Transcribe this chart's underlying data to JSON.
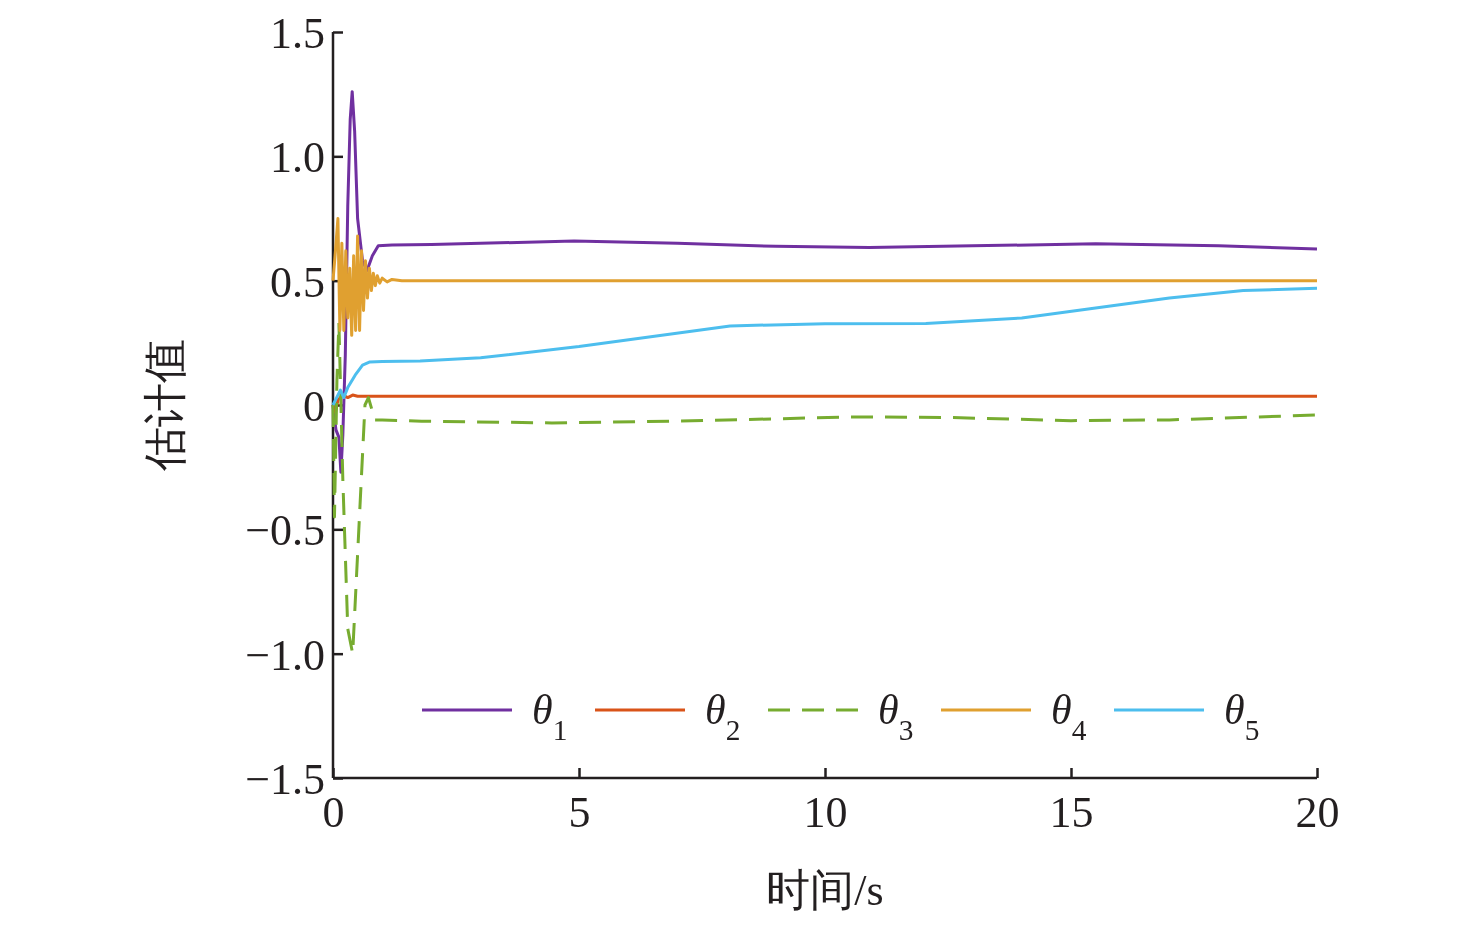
{
  "chart_data": {
    "type": "line",
    "xlabel": "时间/s",
    "ylabel": "估计值",
    "xlim": [
      0,
      20
    ],
    "xticks": [
      0,
      5,
      10,
      15,
      20
    ],
    "ylim": [
      -1.5,
      1.5
    ],
    "yticks": [
      {
        "value": -1.5,
        "label": "−1.5"
      },
      {
        "value": -1,
        "label": "−1.0"
      },
      {
        "value": -0.5,
        "label": "−0.5"
      },
      0,
      0.5,
      {
        "value": 1,
        "label": "1.0"
      },
      1.5
    ],
    "grid": false,
    "legend": "bottom right",
    "marker": "none",
    "series": [
      {
        "name": "θ$_{1}$",
        "color": "#7030a0",
        "line_style": "solid",
        "x": [
          0,
          0.06,
          0.12,
          0.16,
          0.2,
          0.25,
          0.3,
          0.35,
          0.39,
          0.44,
          0.5,
          0.6,
          0.69,
          0.8,
          0.92,
          1.2,
          2,
          3,
          4.9,
          7,
          9,
          10.9,
          13,
          15.5,
          18,
          20
        ],
        "values": [
          0,
          -0.1,
          -0.13,
          -0.27,
          -0.12,
          0.2,
          0.8,
          1.15,
          1.26,
          1.1,
          0.75,
          0.58,
          0.54,
          0.6,
          0.64,
          0.643,
          0.645,
          0.65,
          0.66,
          0.65,
          0.638,
          0.633,
          0.64,
          0.648,
          0.64,
          0.627
        ]
      },
      {
        "name": "θ$_{2}$",
        "color": "#d95319",
        "line_style": "solid",
        "x": [
          0,
          0.05,
          0.1,
          0.2,
          0.3,
          0.4,
          0.5,
          1,
          5,
          10,
          15,
          20
        ],
        "values": [
          0,
          -0.03,
          0.02,
          0.04,
          0.03,
          0.04,
          0.035,
          0.035,
          0.035,
          0.035,
          0.035,
          0.035
        ]
      },
      {
        "name": "θ$_{3}$",
        "color": "#77ac30",
        "line_style": "dashed",
        "x": [
          0,
          0.03,
          0.08,
          0.12,
          0.2,
          0.3,
          0.4,
          0.5,
          0.65,
          0.72,
          0.85,
          1,
          1.8,
          4.45,
          7,
          10.6,
          12.5,
          15,
          17,
          20
        ],
        "values": [
          0,
          -0.45,
          0.1,
          0.33,
          -0.3,
          -0.9,
          -1.0,
          -0.6,
          0,
          0.03,
          -0.06,
          -0.06,
          -0.065,
          -0.072,
          -0.065,
          -0.048,
          -0.05,
          -0.063,
          -0.06,
          -0.04
        ]
      },
      {
        "name": "θ$_{4}$",
        "color": "#e0a030",
        "line_style": "solid",
        "x": [
          0,
          0.05,
          0.1,
          0.14,
          0.18,
          0.22,
          0.26,
          0.3,
          0.34,
          0.38,
          0.42,
          0.46,
          0.5,
          0.54,
          0.58,
          0.62,
          0.66,
          0.7,
          0.74,
          0.78,
          0.82,
          0.86,
          0.9,
          0.95,
          1,
          1.1,
          1.2,
          1.4,
          5,
          10,
          15,
          20
        ],
        "values": [
          0.5,
          0.62,
          0.75,
          0.3,
          0.65,
          0.3,
          0.62,
          0.35,
          0.55,
          0.28,
          0.6,
          0.3,
          0.68,
          0.3,
          0.62,
          0.38,
          0.58,
          0.43,
          0.55,
          0.46,
          0.53,
          0.48,
          0.52,
          0.49,
          0.51,
          0.495,
          0.505,
          0.5,
          0.5,
          0.5,
          0.5,
          0.5
        ]
      },
      {
        "name": "θ$_{5}$",
        "color": "#4dbeee",
        "line_style": "solid",
        "x": [
          0,
          0.15,
          0.22,
          0.3,
          0.45,
          0.6,
          0.75,
          1,
          1.77,
          3,
          5,
          8.07,
          10,
          12.05,
          14,
          15.8,
          17,
          18.5,
          20
        ],
        "values": [
          0,
          0.06,
          0.03,
          0.07,
          0.12,
          0.16,
          0.173,
          0.175,
          0.177,
          0.19,
          0.235,
          0.318,
          0.327,
          0.328,
          0.35,
          0.398,
          0.43,
          0.46,
          0.47
        ]
      }
    ]
  }
}
